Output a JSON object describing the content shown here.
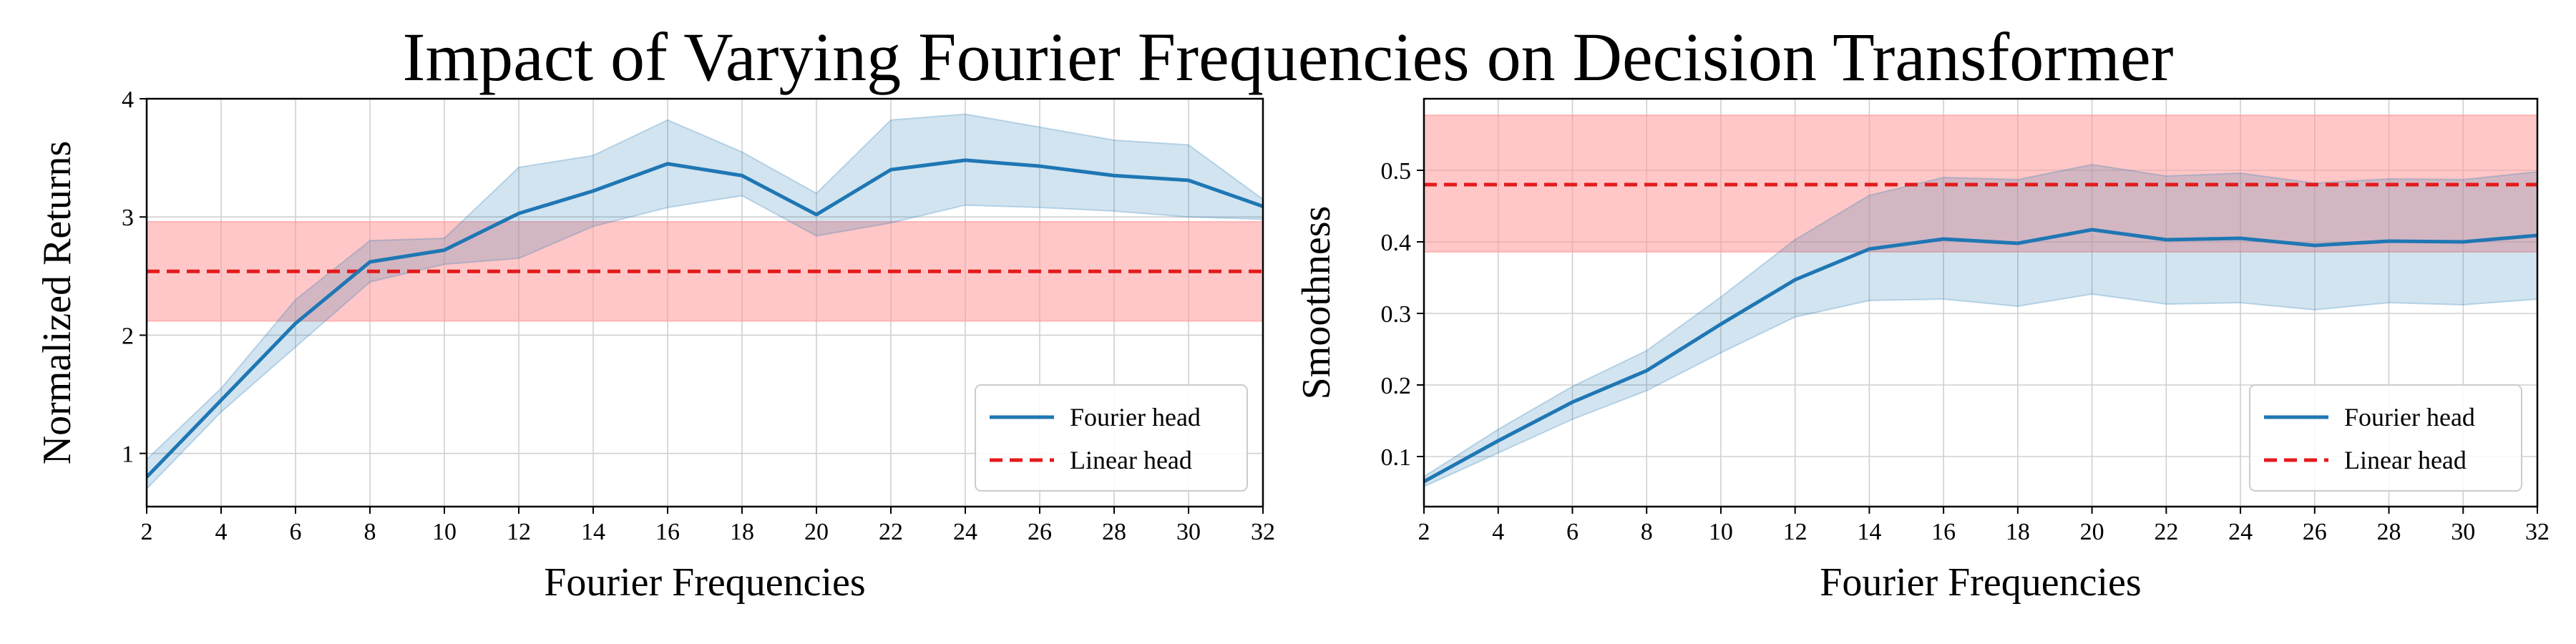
{
  "title": "Impact of Varying Fourier Frequencies on Decision Transformer",
  "colors": {
    "fourier_line": "#1f77b4",
    "fourier_band": "#1f77b4",
    "linear_line": "#e31a1c",
    "linear_band": "#ff9999",
    "grid": "#d0d0d0"
  },
  "chart_data": [
    {
      "type": "line",
      "xlabel": "Fourier Frequencies",
      "ylabel": "Normalized Returns",
      "xlim": [
        2,
        32
      ],
      "ylim": [
        0.55,
        4.0
      ],
      "xticks": [
        2,
        4,
        6,
        8,
        10,
        12,
        14,
        16,
        18,
        20,
        22,
        24,
        26,
        28,
        30,
        32
      ],
      "yticks": [
        1,
        2,
        3,
        4
      ],
      "grid": true,
      "legend_position": "lower-right",
      "x": [
        2,
        4,
        6,
        8,
        10,
        12,
        14,
        16,
        18,
        20,
        22,
        24,
        26,
        28,
        30,
        32
      ],
      "series": [
        {
          "name": "Fourier head",
          "style": "solid",
          "color": "#1f77b4",
          "values": [
            0.8,
            1.45,
            2.1,
            2.62,
            2.72,
            3.03,
            3.22,
            3.45,
            3.35,
            3.02,
            3.4,
            3.48,
            3.43,
            3.35,
            3.31,
            3.09
          ],
          "band_low": [
            0.7,
            1.35,
            1.9,
            2.45,
            2.6,
            2.65,
            2.92,
            3.08,
            3.18,
            2.84,
            2.95,
            3.1,
            3.08,
            3.05,
            3.0,
            2.98
          ],
          "band_high": [
            0.95,
            1.55,
            2.3,
            2.8,
            2.82,
            3.42,
            3.52,
            3.82,
            3.55,
            3.2,
            3.82,
            3.87,
            3.76,
            3.65,
            3.61,
            3.15
          ]
        },
        {
          "name": "Linear head",
          "style": "dashed",
          "color": "#e31a1c",
          "values": [
            2.54,
            2.54,
            2.54,
            2.54,
            2.54,
            2.54,
            2.54,
            2.54,
            2.54,
            2.54,
            2.54,
            2.54,
            2.54,
            2.54,
            2.54,
            2.54
          ],
          "band_low": [
            2.12,
            2.12,
            2.12,
            2.12,
            2.12,
            2.12,
            2.12,
            2.12,
            2.12,
            2.12,
            2.12,
            2.12,
            2.12,
            2.12,
            2.12,
            2.12
          ],
          "band_high": [
            2.96,
            2.96,
            2.96,
            2.96,
            2.96,
            2.96,
            2.96,
            2.96,
            2.96,
            2.96,
            2.96,
            2.96,
            2.96,
            2.96,
            2.96,
            2.96
          ]
        }
      ]
    },
    {
      "type": "line",
      "xlabel": "Fourier Frequencies",
      "ylabel": "Smoothness",
      "xlim": [
        2,
        32
      ],
      "ylim": [
        0.03,
        0.6
      ],
      "xticks": [
        2,
        4,
        6,
        8,
        10,
        12,
        14,
        16,
        18,
        20,
        22,
        24,
        26,
        28,
        30,
        32
      ],
      "yticks": [
        0.1,
        0.2,
        0.3,
        0.4,
        0.5
      ],
      "grid": true,
      "legend_position": "lower-right",
      "x": [
        2,
        4,
        6,
        8,
        10,
        12,
        14,
        16,
        18,
        20,
        22,
        24,
        26,
        28,
        30,
        32
      ],
      "series": [
        {
          "name": "Fourier head",
          "style": "solid",
          "color": "#1f77b4",
          "values": [
            0.065,
            0.122,
            0.176,
            0.22,
            0.285,
            0.347,
            0.39,
            0.404,
            0.398,
            0.417,
            0.403,
            0.405,
            0.395,
            0.401,
            0.4,
            0.409
          ],
          "band_low": [
            0.058,
            0.105,
            0.152,
            0.192,
            0.245,
            0.295,
            0.318,
            0.32,
            0.31,
            0.327,
            0.313,
            0.315,
            0.305,
            0.315,
            0.312,
            0.32
          ],
          "band_high": [
            0.072,
            0.138,
            0.198,
            0.248,
            0.323,
            0.403,
            0.465,
            0.49,
            0.487,
            0.508,
            0.492,
            0.496,
            0.482,
            0.488,
            0.487,
            0.498
          ]
        },
        {
          "name": "Linear head",
          "style": "dashed",
          "color": "#e31a1c",
          "values": [
            0.48,
            0.48,
            0.48,
            0.48,
            0.48,
            0.48,
            0.48,
            0.48,
            0.48,
            0.48,
            0.48,
            0.48,
            0.48,
            0.48,
            0.48,
            0.48
          ],
          "band_low": [
            0.386,
            0.386,
            0.386,
            0.386,
            0.386,
            0.386,
            0.386,
            0.386,
            0.386,
            0.386,
            0.386,
            0.386,
            0.386,
            0.386,
            0.386,
            0.386
          ],
          "band_high": [
            0.577,
            0.577,
            0.577,
            0.577,
            0.577,
            0.577,
            0.577,
            0.577,
            0.577,
            0.577,
            0.577,
            0.577,
            0.577,
            0.577,
            0.577,
            0.577
          ]
        }
      ]
    }
  ]
}
